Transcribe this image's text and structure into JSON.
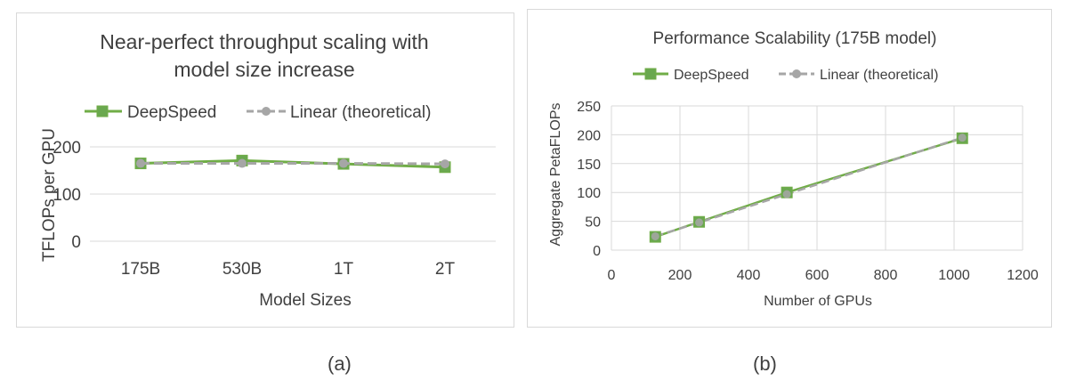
{
  "captions": {
    "a": "(a)",
    "b": "(b)"
  },
  "colors": {
    "deepspeed": "#70ad47",
    "deepspeed_marker": "#6aa84f",
    "linear": "#a6a6a6",
    "grid": "#d9d9d9",
    "axis": "#bfbfbf"
  },
  "chart_data": [
    {
      "type": "line",
      "title": "Near-perfect throughput scaling with model size increase",
      "title_lines": [
        "Near-perfect throughput scaling with",
        "model size increase"
      ],
      "xlabel": "Model Sizes",
      "ylabel": "TFLOPs per GPU",
      "categories": [
        "175B",
        "530B",
        "1T",
        "2T"
      ],
      "yticks": [
        0,
        100,
        200
      ],
      "ylim": [
        0,
        200
      ],
      "grid": true,
      "legend_position": "top",
      "series": [
        {
          "name": "DeepSpeed",
          "values": [
            165,
            171,
            164,
            157
          ],
          "color": "#70ad47",
          "marker": "square",
          "dash": false
        },
        {
          "name": "Linear (theoretical)",
          "values": [
            165,
            165,
            165,
            164
          ],
          "color": "#a6a6a6",
          "marker": "circle",
          "dash": true
        }
      ]
    },
    {
      "type": "line",
      "title": "Performance Scalability (175B model)",
      "xlabel": "Number of GPUs",
      "ylabel": "Aggregate PetaFLOPs",
      "xticks": [
        0,
        200,
        400,
        600,
        800,
        1000,
        1200
      ],
      "yticks": [
        0,
        50,
        100,
        150,
        200,
        250
      ],
      "xlim": [
        0,
        1200
      ],
      "ylim": [
        0,
        250
      ],
      "grid": true,
      "legend_position": "top",
      "series": [
        {
          "name": "DeepSpeed",
          "x": [
            128,
            256,
            512,
            1024
          ],
          "y": [
            23,
            49,
            100,
            194
          ],
          "color": "#70ad47",
          "marker": "square",
          "dash": false
        },
        {
          "name": "Linear (theoretical)",
          "x": [
            128,
            256,
            512,
            1024
          ],
          "y": [
            24,
            48,
            97,
            195
          ],
          "color": "#a6a6a6",
          "marker": "circle",
          "dash": true
        }
      ]
    }
  ]
}
